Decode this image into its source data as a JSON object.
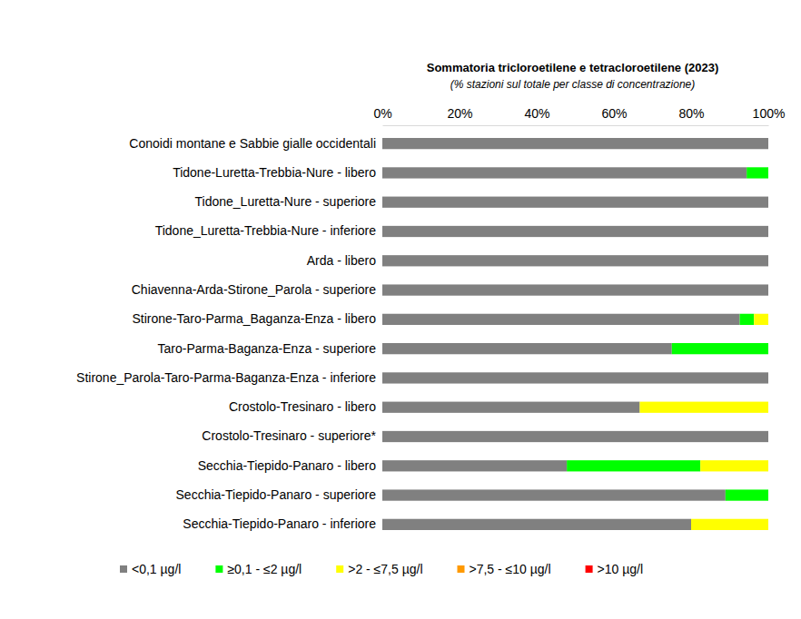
{
  "chart_data": {
    "type": "bar",
    "orientation": "horizontal",
    "stacked": true,
    "grid": false,
    "legend": "bottom",
    "title": "Sommatoria tricloroetilene e tetracloroetilene (2023)",
    "subtitle": "(% stazioni sul totale per classe di concentrazione)",
    "categories": [
      "Conoidi montane e Sabbie gialle occidentali",
      "Tidone-Luretta-Trebbia-Nure - libero",
      "Tidone_Luretta-Nure - superiore",
      "Tidone_Luretta-Trebbia-Nure - inferiore",
      "Arda - libero",
      "Chiavenna-Arda-Stirone_Parola - superiore",
      "Stirone-Taro-Parma_Baganza-Enza - libero",
      "Taro-Parma-Baganza-Enza - superiore",
      "Stirone_Parola-Taro-Parma-Baganza-Enza - inferiore",
      "Crostolo-Tresinaro - libero",
      "Crostolo-Tresinaro - superiore*",
      "Secchia-Tiepido-Panaro - libero",
      "Secchia-Tiepido-Panaro - superiore",
      "Secchia-Tiepido-Panaro - inferiore"
    ],
    "series": [
      {
        "name": "<0,1 µg/l",
        "color": "#808080",
        "values": [
          100,
          94.4,
          100,
          100,
          100,
          100,
          92.6,
          75,
          100,
          66.7,
          100,
          47.8,
          88.9,
          80
        ]
      },
      {
        "name": "≥0,1 - ≤2 µg/l",
        "color": "#00ff00",
        "values": [
          0,
          5.6,
          0,
          0,
          0,
          0,
          3.7,
          25,
          0,
          0,
          0,
          34.6,
          11.1,
          0
        ]
      },
      {
        "name": ">2 - ≤7,5 µg/l",
        "color": "#ffff00",
        "values": [
          0,
          0,
          0,
          0,
          0,
          0,
          3.7,
          0,
          0,
          33.3,
          0,
          17.6,
          0,
          20
        ]
      },
      {
        "name": ">7,5 - ≤10 µg/l",
        "color": "#ff9900",
        "values": [
          0,
          0,
          0,
          0,
          0,
          0,
          0,
          0,
          0,
          0,
          0,
          0,
          0,
          0
        ]
      },
      {
        "name": ">10 µg/l",
        "color": "#ff0000",
        "values": [
          0,
          0,
          0,
          0,
          0,
          0,
          0,
          0,
          0,
          0,
          0,
          0,
          0,
          0
        ]
      }
    ],
    "xlim": [
      0,
      100
    ],
    "xticks": [
      {
        "value": 0,
        "label": "0%"
      },
      {
        "value": 20,
        "label": "20%"
      },
      {
        "value": 40,
        "label": "40%"
      },
      {
        "value": 60,
        "label": "60%"
      },
      {
        "value": 80,
        "label": "80%"
      },
      {
        "value": 100,
        "label": "100%"
      }
    ]
  }
}
